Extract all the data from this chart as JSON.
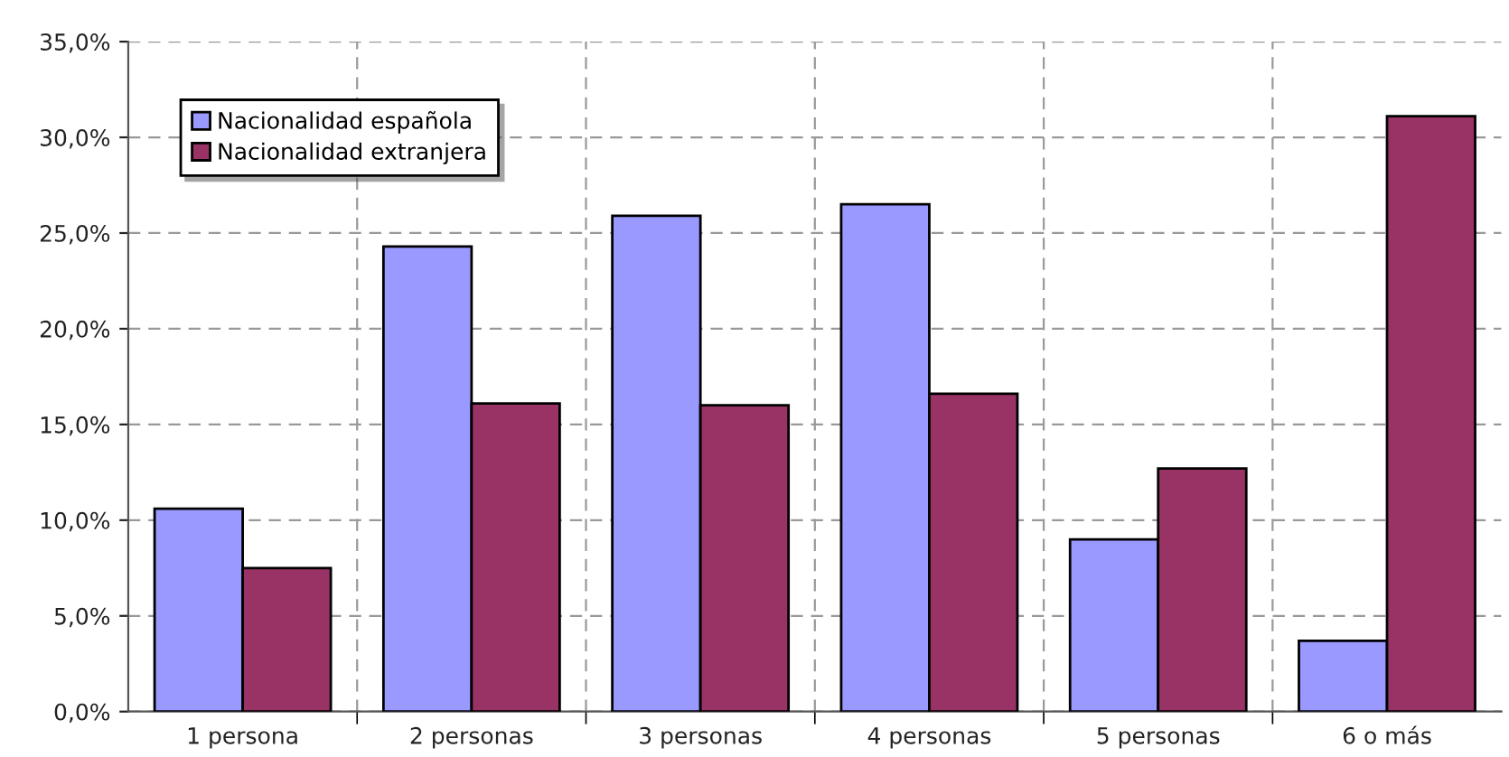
{
  "chart_data": {
    "type": "bar",
    "categories": [
      "1 persona",
      "2 personas",
      "3 personas",
      "4 personas",
      "5 personas",
      "6 o más"
    ],
    "series": [
      {
        "name": "Nacionalidad española",
        "color": "#9999ff",
        "values": [
          10.6,
          24.3,
          25.9,
          26.5,
          9.0,
          3.7
        ]
      },
      {
        "name": "Nacionalidad extranjera",
        "color": "#993366",
        "values": [
          7.5,
          16.1,
          16.0,
          16.6,
          12.7,
          31.1
        ]
      }
    ],
    "ylim": [
      0,
      35
    ],
    "yticks": [
      {
        "value": 0,
        "label": "0,0%"
      },
      {
        "value": 5,
        "label": "5,0%"
      },
      {
        "value": 10,
        "label": "10,0%"
      },
      {
        "value": 15,
        "label": "15,0%"
      },
      {
        "value": 20,
        "label": "20,0%"
      },
      {
        "value": 25,
        "label": "25,0%"
      },
      {
        "value": 30,
        "label": "30,0%"
      },
      {
        "value": 35,
        "label": "35,0%"
      }
    ],
    "grid": true,
    "legend": "top left"
  }
}
